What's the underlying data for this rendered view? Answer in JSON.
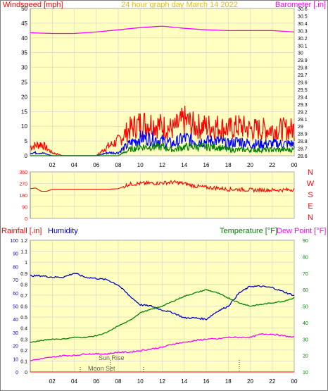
{
  "colors": {
    "background_plot": "#ffffc0",
    "grid": "#d0d0d0",
    "wind_red": "#ff0000",
    "wind_blue": "#0000ff",
    "wind_green": "#008000",
    "barometer": "#ff00ff",
    "direction": "#ff0000",
    "humidity": "#0000c0",
    "temperature": "#008000",
    "dewpoint": "#ff00ff",
    "rain_axis": "#ff0000",
    "humidity_axis": "#0000c0"
  },
  "chart_data": [
    {
      "type": "line",
      "title": "24 hour graph day   March 14 2022",
      "left_label": "Windspeed [mph]",
      "right_label": "Barometer [.in]",
      "x_ticks": [
        "02",
        "04",
        "06",
        "08",
        "10",
        "12",
        "14",
        "16",
        "18",
        "20",
        "22",
        "00"
      ],
      "y_left_ticks": [
        "0",
        "5",
        "10",
        "15",
        "20",
        "25",
        "30",
        "35",
        "40",
        "45",
        "50"
      ],
      "y_left_range": [
        0,
        50
      ],
      "y_right_ticks": [
        "28.6",
        "28.7",
        "28.8",
        "28.9",
        "29",
        "29.1",
        "29.2",
        "29.3",
        "29.4",
        "29.5",
        "29.6",
        "29.7",
        "29.8",
        "29.9",
        "30",
        "30.1",
        "30.2",
        "30.3",
        "30.4",
        "30.5",
        "30.6"
      ],
      "y_right_range": [
        28.6,
        30.6
      ],
      "x_range_hours": [
        0,
        24
      ],
      "series": [
        {
          "name": "Windspeed [mph]",
          "role": "gust",
          "color": "#ff0000",
          "x": [
            0,
            1,
            2,
            3,
            4,
            5,
            6,
            7,
            8,
            9,
            10,
            11,
            12,
            13,
            14,
            15,
            16,
            17,
            18,
            19,
            20,
            21,
            22,
            23,
            24
          ],
          "y": [
            3,
            4,
            1,
            0,
            0,
            0,
            0,
            3,
            5,
            9,
            11,
            11,
            10,
            9,
            12,
            10,
            10,
            10,
            9,
            10,
            9,
            9,
            9,
            9,
            9
          ]
        },
        {
          "name": "Windspeed [mph]",
          "role": "avg",
          "color": "#0000ff",
          "x": [
            0,
            1,
            2,
            3,
            4,
            5,
            6,
            7,
            8,
            9,
            10,
            11,
            12,
            13,
            14,
            15,
            16,
            17,
            18,
            19,
            20,
            21,
            22,
            23,
            24
          ],
          "y": [
            1,
            1,
            0,
            0,
            0,
            0,
            0,
            1,
            1,
            4,
            6,
            6,
            5,
            4,
            6,
            5,
            5,
            5,
            4,
            5,
            4,
            4,
            4,
            4,
            4
          ]
        },
        {
          "name": "Windspeed [mph]",
          "role": "min",
          "color": "#008000",
          "x": [
            0,
            1,
            2,
            3,
            4,
            5,
            6,
            7,
            8,
            9,
            10,
            11,
            12,
            13,
            14,
            15,
            16,
            17,
            18,
            19,
            20,
            21,
            22,
            23,
            24
          ],
          "y": [
            0,
            0,
            0,
            0,
            0,
            0,
            0,
            0,
            0,
            2,
            3,
            3,
            3,
            2,
            3,
            3,
            3,
            3,
            2,
            2,
            2,
            2,
            2,
            2,
            2
          ]
        },
        {
          "name": "Barometer [.in]",
          "color": "#ff00ff",
          "x": [
            0,
            2,
            4,
            6,
            8,
            10,
            12,
            14,
            16,
            18,
            20,
            22,
            24
          ],
          "y": [
            30.27,
            30.26,
            30.26,
            30.28,
            30.31,
            30.34,
            30.36,
            30.33,
            30.31,
            30.3,
            30.3,
            30.3,
            30.28
          ]
        }
      ]
    },
    {
      "type": "line",
      "title": "",
      "left_label": "",
      "right_label": "",
      "y_left_ticks": [
        "0",
        "90",
        "180",
        "270",
        "360"
      ],
      "y_left_range": [
        0,
        360
      ],
      "y_right_ticks": [
        "N",
        "W",
        "S",
        "E",
        "N"
      ],
      "x_range_hours": [
        0,
        24
      ],
      "series": [
        {
          "name": "",
          "color": "#ff0000",
          "x": [
            0,
            0.5,
            1,
            1.5,
            2,
            3,
            4,
            5,
            6,
            7,
            8,
            9,
            10,
            11,
            12,
            13,
            14,
            15,
            16,
            17,
            18,
            19,
            20,
            21,
            22,
            23,
            24
          ],
          "y": [
            230,
            235,
            210,
            210,
            225,
            225,
            225,
            225,
            225,
            225,
            230,
            265,
            270,
            272,
            275,
            280,
            270,
            250,
            240,
            235,
            225,
            225,
            220,
            220,
            220,
            220,
            225
          ]
        }
      ]
    },
    {
      "type": "line",
      "title": "",
      "left_label": "Rainfall [.in]",
      "left_label2": "Humidity",
      "right_label": "Temperature [°F]",
      "right_label2": "Dew Point [°F]",
      "x_ticks": [
        "02",
        "04",
        "06",
        "08",
        "10",
        "12",
        "14",
        "16",
        "18",
        "20",
        "22",
        "00"
      ],
      "y_rain_ticks": [
        "0",
        "0.1",
        "0.2",
        "0.3",
        "0.4",
        "0.5",
        "0.6",
        "0.7",
        "0.8",
        "0.9",
        "1",
        "1.1",
        "1.2"
      ],
      "y_rain_range": [
        0,
        1.2
      ],
      "y_humidity_ticks": [
        "0",
        "10",
        "20",
        "30",
        "40",
        "50",
        "60",
        "70",
        "80",
        "90",
        "100"
      ],
      "y_humidity_range": [
        0,
        100
      ],
      "y_temp_ticks": [
        "10",
        "20",
        "30",
        "40",
        "50",
        "60",
        "70",
        "80",
        "90"
      ],
      "y_temp_range": [
        10,
        90
      ],
      "annotations": [
        "Sun Rise",
        "Moon Set"
      ],
      "x_range_hours": [
        0,
        24
      ],
      "series": [
        {
          "name": "Humidity",
          "color": "#0000c0",
          "x": [
            0,
            1,
            2,
            3,
            4,
            5,
            6,
            7,
            8,
            9,
            10,
            11,
            12,
            13,
            14,
            15,
            16,
            17,
            18,
            19,
            20,
            21,
            22,
            23,
            24
          ],
          "y": [
            73,
            73,
            72,
            72,
            75,
            72,
            71,
            70,
            66,
            58,
            51,
            50,
            47,
            45,
            41,
            41,
            40,
            46,
            50,
            60,
            65,
            65,
            64,
            61,
            58
          ]
        },
        {
          "name": "Temperature [°F]",
          "color": "#008000",
          "x": [
            0,
            1,
            2,
            3,
            4,
            5,
            6,
            7,
            8,
            9,
            10,
            11,
            12,
            13,
            14,
            15,
            16,
            17,
            18,
            19,
            20,
            21,
            22,
            23,
            24
          ],
          "y": [
            28,
            29,
            30,
            30,
            31,
            31,
            32,
            34,
            38,
            41,
            46,
            48,
            50,
            53,
            56,
            58,
            60,
            58,
            55,
            52,
            50,
            51,
            52,
            53,
            55
          ]
        },
        {
          "name": "Dew Point [°F]",
          "color": "#ff00ff",
          "x": [
            0,
            1,
            2,
            3,
            4,
            5,
            6,
            7,
            8,
            9,
            10,
            11,
            12,
            13,
            14,
            15,
            16,
            17,
            18,
            19,
            20,
            21,
            22,
            23,
            24
          ],
          "y": [
            17,
            18,
            19,
            20,
            20,
            21,
            21,
            21,
            22,
            22,
            23,
            24,
            25,
            27,
            28,
            29,
            30,
            30,
            31,
            31,
            31,
            33,
            33,
            32,
            31
          ]
        },
        {
          "name": "Rainfall [.in]",
          "color": "#ff0000",
          "x": [
            0,
            24
          ],
          "y": [
            0,
            0
          ]
        }
      ]
    }
  ]
}
